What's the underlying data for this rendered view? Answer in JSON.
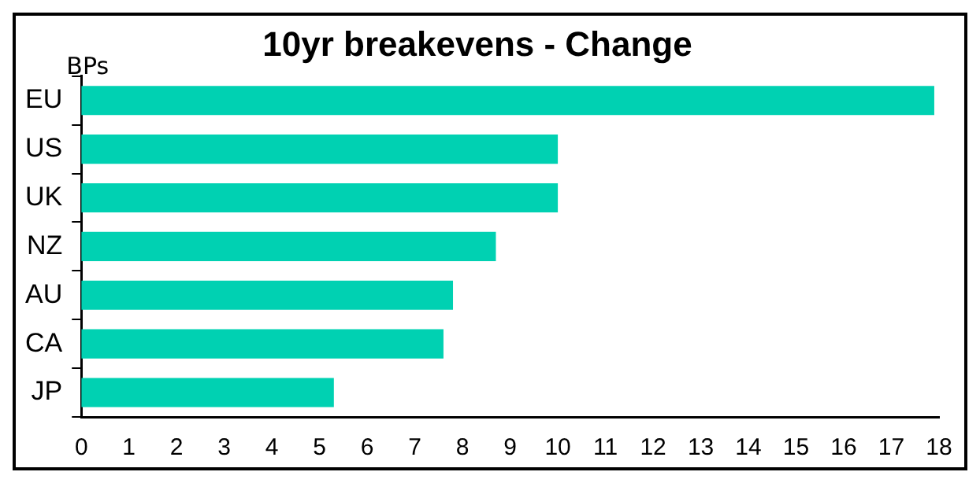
{
  "chart_data": {
    "type": "bar",
    "orientation": "horizontal",
    "title": "10yr breakevens - Change",
    "ylabel": "BPs",
    "categories": [
      "EU",
      "US",
      "UK",
      "NZ",
      "AU",
      "CA",
      "JP"
    ],
    "values": [
      17.9,
      10,
      10,
      8.7,
      7.8,
      7.6,
      5.3
    ],
    "color": "#00d1b2",
    "xlim": [
      0,
      18
    ],
    "xticks": [
      0,
      1,
      2,
      3,
      4,
      5,
      6,
      7,
      8,
      9,
      10,
      11,
      12,
      13,
      14,
      15,
      16,
      17,
      18
    ],
    "grid": false,
    "legend": false
  }
}
